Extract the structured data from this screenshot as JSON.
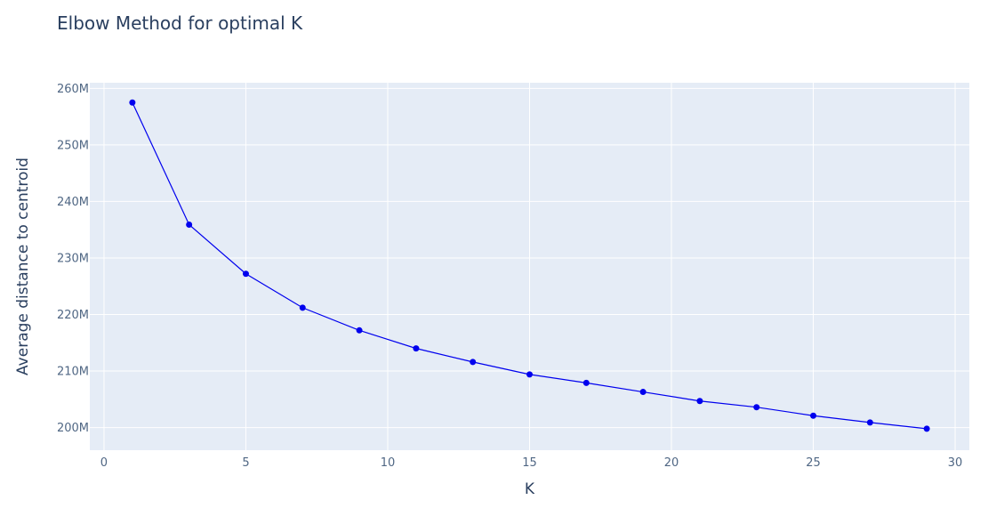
{
  "chart_data": {
    "type": "line",
    "title": "Elbow Method for optimal K",
    "xlabel": "K",
    "ylabel": "Average distance to centroid",
    "xlim": [
      -0.5,
      30.5
    ],
    "ylim": [
      196000000,
      261000000
    ],
    "x_ticks": [
      0,
      5,
      10,
      15,
      20,
      25,
      30
    ],
    "y_ticks": [
      {
        "value": 200000000,
        "label": "200M"
      },
      {
        "value": 210000000,
        "label": "210M"
      },
      {
        "value": 220000000,
        "label": "220M"
      },
      {
        "value": 230000000,
        "label": "230M"
      },
      {
        "value": 240000000,
        "label": "240M"
      },
      {
        "value": 250000000,
        "label": "250M"
      },
      {
        "value": 260000000,
        "label": "260M"
      }
    ],
    "grid": true,
    "series": [
      {
        "mode": "lines+markers",
        "color": "#0000ee",
        "x": [
          1,
          3,
          5,
          7,
          9,
          11,
          13,
          15,
          17,
          19,
          21,
          23,
          25,
          27,
          29
        ],
        "y": [
          257500000,
          235900000,
          227200000,
          221200000,
          217200000,
          214000000,
          211600000,
          209400000,
          207900000,
          206300000,
          204700000,
          203600000,
          202100000,
          200900000,
          199800000
        ]
      }
    ]
  },
  "colors": {
    "plot_background": "#e5ecf6",
    "grid": "#ffffff",
    "series": "#0000ee"
  }
}
